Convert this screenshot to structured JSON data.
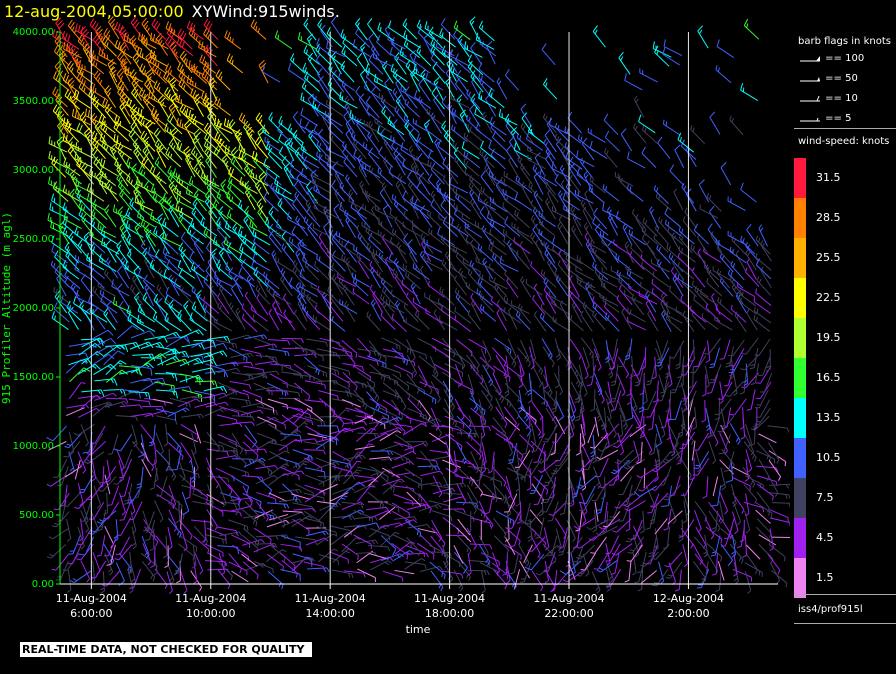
{
  "header": {
    "date_time": "12-aug-2004,05:00:00",
    "title": "XYWind:915winds."
  },
  "chart_data": {
    "type": "wind-barb time-height",
    "title": "XYWind:915winds.",
    "xlabel": "time",
    "ylabel": "915 Profiler Altitude (m agl)",
    "ylim": [
      0,
      4000
    ],
    "y_ticks": [
      "0.00",
      "500.00",
      "1000.00",
      "1500.00",
      "2000.00",
      "2500.00",
      "3000.00",
      "3500.00",
      "4000.00"
    ],
    "x_ticks": [
      {
        "date": "11-Aug-2004",
        "time": "6:00:00"
      },
      {
        "date": "11-Aug-2004",
        "time": "10:00:00"
      },
      {
        "date": "11-Aug-2004",
        "time": "14:00:00"
      },
      {
        "date": "11-Aug-2004",
        "time": "18:00:00"
      },
      {
        "date": "11-Aug-2004",
        "time": "22:00:00"
      },
      {
        "date": "12-Aug-2004",
        "time": "2:00:00"
      }
    ],
    "x_range_hours": [
      4.95,
      29.0
    ],
    "grid": "vertical lines at labelled times",
    "legend_placement": "right",
    "speed_colors": [
      {
        "label": "31.5",
        "color": "#ff1a3c"
      },
      {
        "label": "28.5",
        "color": "#ff8000"
      },
      {
        "label": "25.5",
        "color": "#ffb000"
      },
      {
        "label": "22.5",
        "color": "#ffff00"
      },
      {
        "label": "19.5",
        "color": "#b0ff30"
      },
      {
        "label": "16.5",
        "color": "#30ff30"
      },
      {
        "label": "13.5",
        "color": "#00ffff"
      },
      {
        "label": "10.5",
        "color": "#4060ff"
      },
      {
        "label": "7.5",
        "color": "#404060"
      },
      {
        "label": "4.5",
        "color": "#a020f0"
      },
      {
        "label": "1.5",
        "color": "#ee82ee"
      }
    ],
    "barb_flags": [
      "== 100",
      "== 50",
      "== 10",
      "== 5"
    ]
  },
  "legend": {
    "barb_heading": "barb flags in knots",
    "speed_heading": "wind-speed: knots",
    "source": "iss4/prof915l"
  },
  "footer": {
    "qc_notice": "REAL-TIME DATA, NOT CHECKED FOR QUALITY"
  }
}
